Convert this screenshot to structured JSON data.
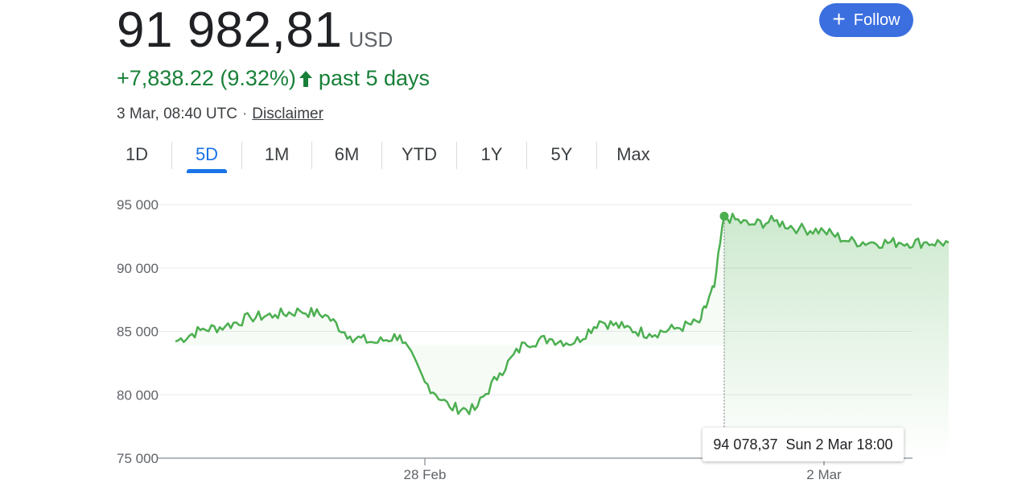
{
  "quote": {
    "price": "91 982,81",
    "currency": "USD",
    "change": "+7,838.22 (9.32%)",
    "period": "past 5 days",
    "timestamp": "3 Mar, 08:40 UTC",
    "separator": "·",
    "disclaimer": "Disclaimer",
    "follow_label": "Follow",
    "change_color": "#188038",
    "arrow_icon": "arrow-up-icon",
    "follow_icon": "plus-icon"
  },
  "tabs": [
    {
      "label": "1D",
      "active": false
    },
    {
      "label": "5D",
      "active": true
    },
    {
      "label": "1M",
      "active": false
    },
    {
      "label": "6M",
      "active": false
    },
    {
      "label": "YTD",
      "active": false
    },
    {
      "label": "1Y",
      "active": false
    },
    {
      "label": "5Y",
      "active": false
    },
    {
      "label": "Max",
      "active": false
    }
  ],
  "tooltip": {
    "value": "94 078,37",
    "time": "Sun 2 Mar 18:00"
  },
  "chart_data": {
    "type": "area",
    "ylim": [
      75000,
      95000
    ],
    "y_ticks": [
      95000,
      90000,
      85000,
      80000,
      75000
    ],
    "y_tick_labels": [
      "95 000",
      "90 000",
      "85 000",
      "80 000",
      "75 000"
    ],
    "x_ticks": [
      {
        "label": "28 Feb",
        "x": 1.25
      },
      {
        "label": "2 Mar",
        "x": 3.25
      }
    ],
    "xlim": [
      -0.25,
      4.1
    ],
    "grid": true,
    "line_color": "#4caf50",
    "highlight": {
      "x": 2.75,
      "y": 94078.37
    },
    "series": [
      {
        "x": [
          0.0,
          0.125,
          0.25,
          0.375,
          0.5,
          0.625,
          0.75,
          0.875,
          1.0,
          1.125,
          1.25,
          1.375,
          1.5,
          1.625,
          1.75,
          1.875,
          2.0,
          2.125,
          2.25,
          2.375,
          2.5,
          2.625,
          2.7,
          2.75,
          2.875,
          3.0,
          3.125,
          3.25,
          3.375,
          3.5,
          3.625,
          3.75,
          3.875
        ],
        "y": [
          84200,
          85100,
          85400,
          86100,
          86300,
          86600,
          86300,
          84600,
          84100,
          84700,
          81000,
          79000,
          78800,
          81700,
          84100,
          84400,
          84100,
          85800,
          85300,
          84800,
          85200,
          85700,
          88500,
          94078.37,
          93400,
          93700,
          93100,
          92900,
          92100,
          92000,
          92000,
          92000,
          92000
        ]
      }
    ]
  }
}
